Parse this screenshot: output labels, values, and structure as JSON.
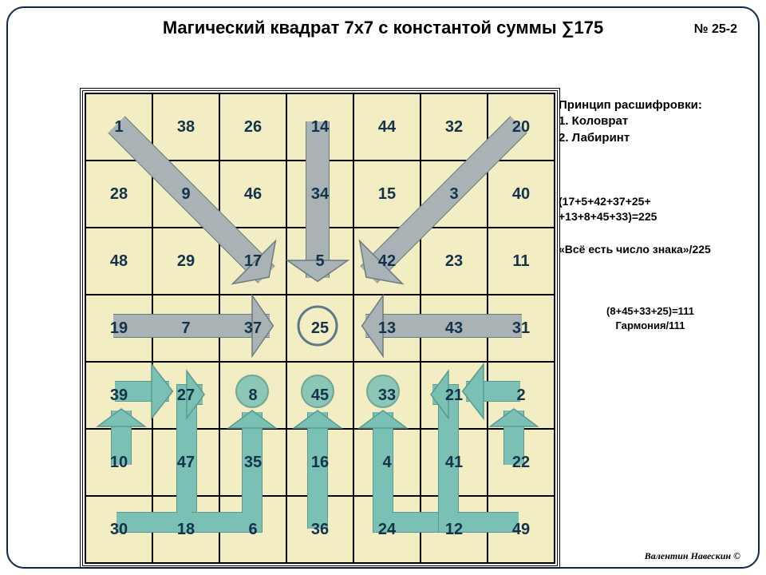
{
  "title": "Магический квадрат 7x7 с константой суммы ∑175",
  "page_number": "№ 25-2",
  "notes": {
    "principle_heading": "Принцип расшифровки:",
    "principle_items": [
      "1. Коловрат",
      "2. Лабиринт"
    ],
    "calc1_line1": "(17+5+42+37+25+",
    "calc1_line2": "+13+8+45+33)=225",
    "calc1_quote": "«Всё есть число знака»/225",
    "calc2_line1": "(8+45+33+25)=111",
    "calc2_line2": "Гармония/111"
  },
  "author": "Валентин Навескин ©",
  "grid": {
    "rows": 7,
    "cols": 7,
    "cell_size": 80,
    "cell_bg": "#f2edc3",
    "cell_fontsize": 20,
    "cell_font_color": "#12334a",
    "values": [
      [
        1,
        38,
        26,
        14,
        44,
        32,
        20
      ],
      [
        28,
        9,
        46,
        34,
        15,
        3,
        40
      ],
      [
        48,
        29,
        17,
        5,
        42,
        23,
        11
      ],
      [
        19,
        7,
        37,
        25,
        13,
        43,
        31
      ],
      [
        39,
        27,
        8,
        45,
        33,
        21,
        2
      ],
      [
        10,
        47,
        35,
        16,
        4,
        41,
        22
      ],
      [
        30,
        18,
        6,
        36,
        24,
        12,
        49
      ]
    ]
  },
  "arrows": {
    "gray": "#a9b3b6",
    "teal": "#7bc0b5",
    "stroke": "#6b7b7e",
    "circle_stroke": "#5a7a8a",
    "teal_stroke": "#5a9a8e"
  },
  "title_fontsize": 22,
  "notes_fontsize": 15
}
